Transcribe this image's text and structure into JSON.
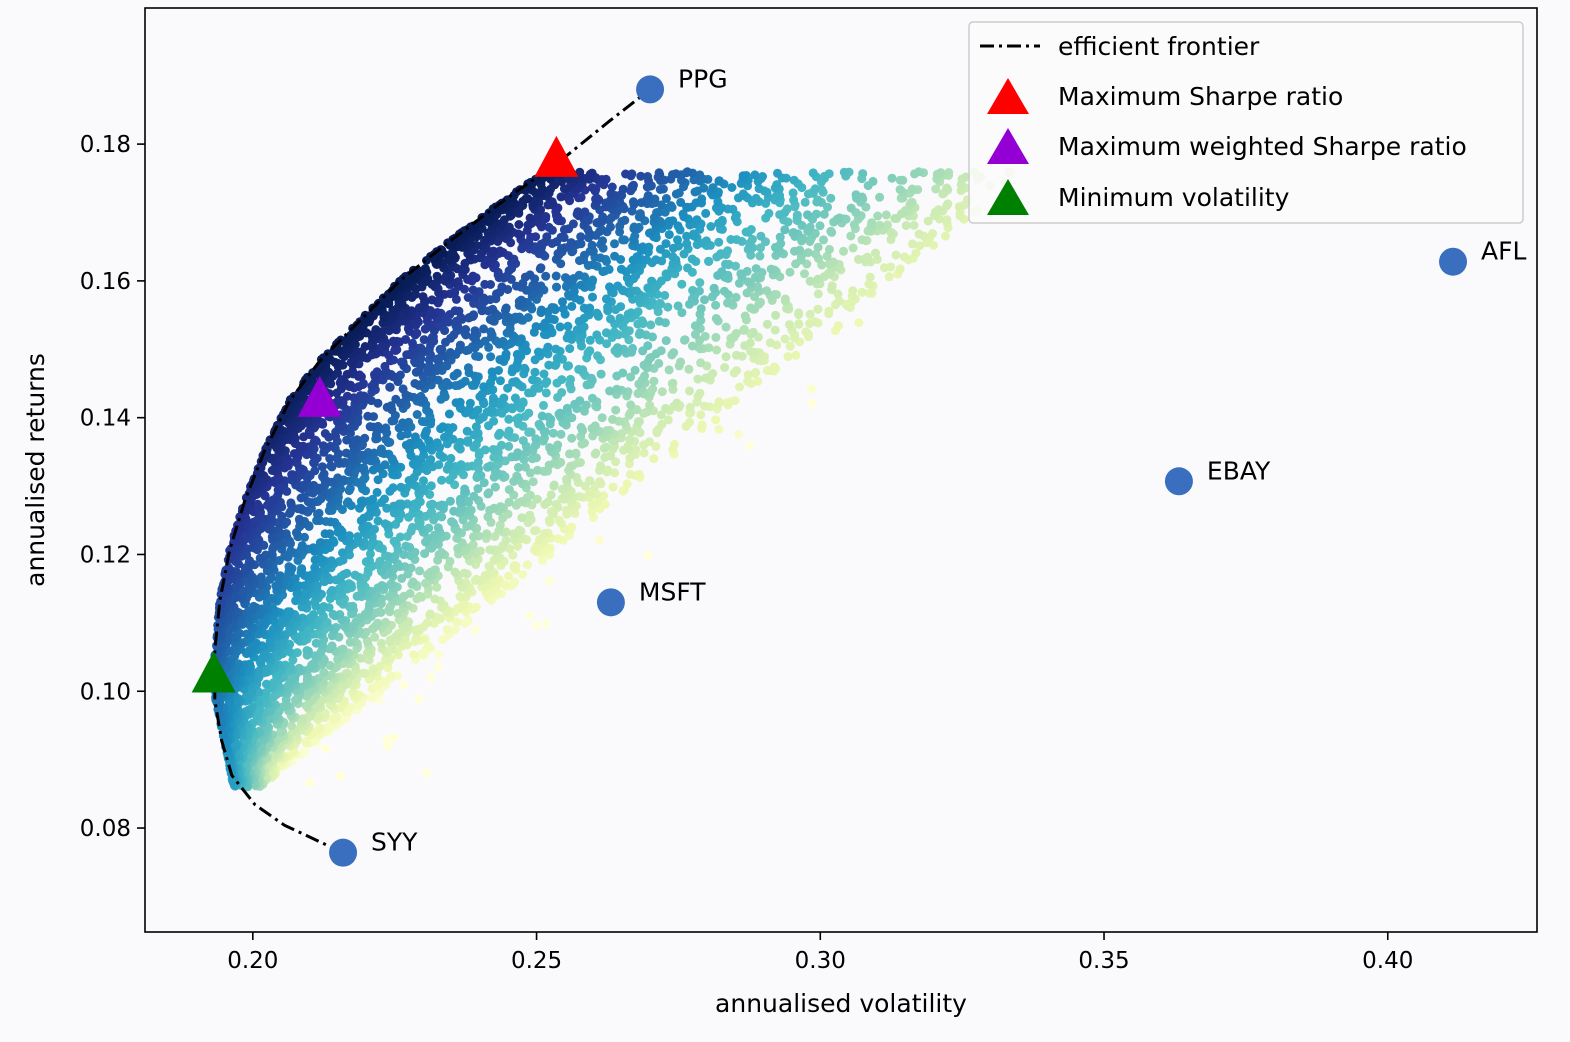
{
  "chart_data": {
    "type": "scatter",
    "xlabel": "annualised volatility",
    "ylabel": "annualised returns",
    "xlim": [
      0.181,
      0.4263
    ],
    "ylim": [
      0.0648,
      0.1999
    ],
    "xticks": [
      0.2,
      0.25,
      0.3,
      0.35,
      0.4
    ],
    "xtick_labels": [
      "0.20",
      "0.25",
      "0.30",
      "0.35",
      "0.40"
    ],
    "yticks": [
      0.08,
      0.1,
      0.12,
      0.14,
      0.16,
      0.18
    ],
    "ytick_labels": [
      "0.08",
      "0.10",
      "0.12",
      "0.14",
      "0.16",
      "0.18"
    ],
    "grid": false,
    "legend_position": "top-right",
    "random_portfolios": {
      "colormap": "YlGnBu",
      "color_by": "Sharpe ratio",
      "volatility_range": [
        0.192,
        0.37
      ],
      "return_range": [
        0.085,
        0.176
      ]
    },
    "efficient_frontier": {
      "name": "efficient frontier",
      "color": "#000000",
      "style": "dash-dot",
      "points": [
        [
          0.2159,
          0.0764
        ],
        [
          0.2056,
          0.0804
        ],
        [
          0.2004,
          0.0834
        ],
        [
          0.1963,
          0.0877
        ],
        [
          0.1945,
          0.0928
        ],
        [
          0.1933,
          0.0987
        ],
        [
          0.1933,
          0.106
        ],
        [
          0.1942,
          0.1133
        ],
        [
          0.1959,
          0.1206
        ],
        [
          0.1986,
          0.1279
        ],
        [
          0.2021,
          0.1352
        ],
        [
          0.2065,
          0.1425
        ],
        [
          0.2118,
          0.1483
        ],
        [
          0.2189,
          0.1542
        ],
        [
          0.2259,
          0.16
        ],
        [
          0.2347,
          0.1658
        ],
        [
          0.2453,
          0.1724
        ],
        [
          0.2541,
          0.1775
        ],
        [
          0.2629,
          0.1834
        ],
        [
          0.27,
          0.188
        ]
      ]
    },
    "optimal_portfolios": [
      {
        "name": "Maximum Sharpe ratio",
        "x": 0.2535,
        "y": 0.1777,
        "color": "#ff0000",
        "marker": "triangle"
      },
      {
        "name": "Maximum weighted Sharpe ratio",
        "x": 0.2118,
        "y": 0.1426,
        "color": "#9400d3",
        "marker": "triangle"
      },
      {
        "name": "Minimum volatility",
        "x": 0.1931,
        "y": 0.1023,
        "color": "#008000",
        "marker": "triangle"
      }
    ],
    "stocks": {
      "color": "#3a6fbf",
      "points": [
        {
          "label": "PPG",
          "x": 0.27,
          "y": 0.188
        },
        {
          "label": "AFL",
          "x": 0.4115,
          "y": 0.1628
        },
        {
          "label": "EBAY",
          "x": 0.3632,
          "y": 0.1307
        },
        {
          "label": "MSFT",
          "x": 0.2631,
          "y": 0.113
        },
        {
          "label": "SYY",
          "x": 0.2159,
          "y": 0.0764
        }
      ]
    }
  }
}
